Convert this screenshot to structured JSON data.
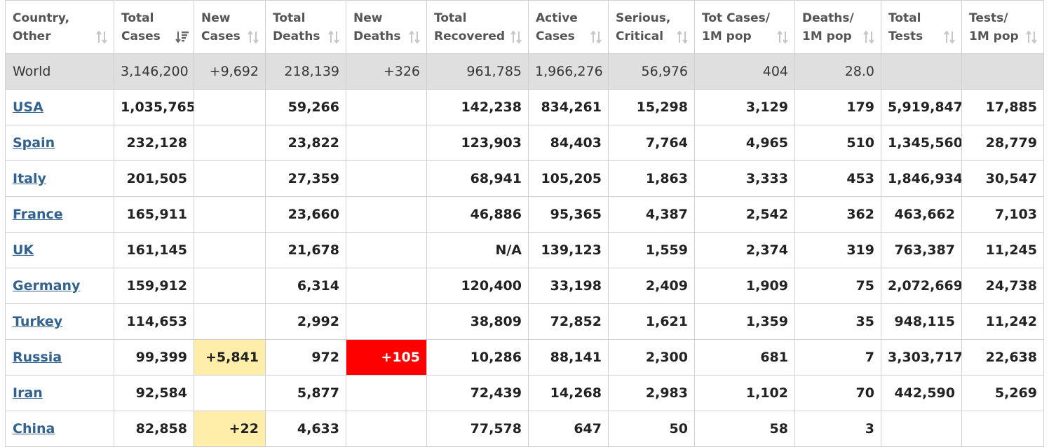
{
  "columns": [
    {
      "line1": "Country,",
      "line2": "Other",
      "sort": "both"
    },
    {
      "line1": "Total",
      "line2": "Cases",
      "sort": "desc"
    },
    {
      "line1": "New",
      "line2": "Cases",
      "sort": "both"
    },
    {
      "line1": "Total",
      "line2": "Deaths",
      "sort": "both"
    },
    {
      "line1": "New",
      "line2": "Deaths",
      "sort": "both"
    },
    {
      "line1": "Total",
      "line2": "Recovered",
      "sort": "both"
    },
    {
      "line1": "Active",
      "line2": "Cases",
      "sort": "both"
    },
    {
      "line1": "Serious,",
      "line2": "Critical",
      "sort": "both"
    },
    {
      "line1": "Tot Cases/",
      "line2": "1M pop",
      "sort": "both"
    },
    {
      "line1": "Deaths/",
      "line2": "1M pop",
      "sort": "both"
    },
    {
      "line1": "Total",
      "line2": "Tests",
      "sort": "both"
    },
    {
      "line1": "Tests/",
      "line2": "1M pop",
      "sort": "both"
    }
  ],
  "world": {
    "country": "World",
    "total_cases": "3,146,200",
    "new_cases": "+9,692",
    "total_deaths": "218,139",
    "new_deaths": "+326",
    "total_recovered": "961,785",
    "active_cases": "1,966,276",
    "serious_critical": "56,976",
    "cases_per_1m": "404",
    "deaths_per_1m": "28.0",
    "total_tests": "",
    "tests_per_1m": ""
  },
  "rows": [
    {
      "country": "USA",
      "total_cases": "1,035,765",
      "new_cases": "",
      "total_deaths": "59,266",
      "new_deaths": "",
      "total_recovered": "142,238",
      "active_cases": "834,261",
      "serious_critical": "15,298",
      "cases_per_1m": "3,129",
      "deaths_per_1m": "179",
      "total_tests": "5,919,847",
      "tests_per_1m": "17,885"
    },
    {
      "country": "Spain",
      "total_cases": "232,128",
      "new_cases": "",
      "total_deaths": "23,822",
      "new_deaths": "",
      "total_recovered": "123,903",
      "active_cases": "84,403",
      "serious_critical": "7,764",
      "cases_per_1m": "4,965",
      "deaths_per_1m": "510",
      "total_tests": "1,345,560",
      "tests_per_1m": "28,779"
    },
    {
      "country": "Italy",
      "total_cases": "201,505",
      "new_cases": "",
      "total_deaths": "27,359",
      "new_deaths": "",
      "total_recovered": "68,941",
      "active_cases": "105,205",
      "serious_critical": "1,863",
      "cases_per_1m": "3,333",
      "deaths_per_1m": "453",
      "total_tests": "1,846,934",
      "tests_per_1m": "30,547"
    },
    {
      "country": "France",
      "total_cases": "165,911",
      "new_cases": "",
      "total_deaths": "23,660",
      "new_deaths": "",
      "total_recovered": "46,886",
      "active_cases": "95,365",
      "serious_critical": "4,387",
      "cases_per_1m": "2,542",
      "deaths_per_1m": "362",
      "total_tests": "463,662",
      "tests_per_1m": "7,103"
    },
    {
      "country": "UK",
      "total_cases": "161,145",
      "new_cases": "",
      "total_deaths": "21,678",
      "new_deaths": "",
      "total_recovered": "N/A",
      "active_cases": "139,123",
      "serious_critical": "1,559",
      "cases_per_1m": "2,374",
      "deaths_per_1m": "319",
      "total_tests": "763,387",
      "tests_per_1m": "11,245"
    },
    {
      "country": "Germany",
      "total_cases": "159,912",
      "new_cases": "",
      "total_deaths": "6,314",
      "new_deaths": "",
      "total_recovered": "120,400",
      "active_cases": "33,198",
      "serious_critical": "2,409",
      "cases_per_1m": "1,909",
      "deaths_per_1m": "75",
      "total_tests": "2,072,669",
      "tests_per_1m": "24,738"
    },
    {
      "country": "Turkey",
      "total_cases": "114,653",
      "new_cases": "",
      "total_deaths": "2,992",
      "new_deaths": "",
      "total_recovered": "38,809",
      "active_cases": "72,852",
      "serious_critical": "1,621",
      "cases_per_1m": "1,359",
      "deaths_per_1m": "35",
      "total_tests": "948,115",
      "tests_per_1m": "11,242"
    },
    {
      "country": "Russia",
      "total_cases": "99,399",
      "new_cases": "+5,841",
      "total_deaths": "972",
      "new_deaths": "+105",
      "total_recovered": "10,286",
      "active_cases": "88,141",
      "serious_critical": "2,300",
      "cases_per_1m": "681",
      "deaths_per_1m": "7",
      "total_tests": "3,303,717",
      "tests_per_1m": "22,638"
    },
    {
      "country": "Iran",
      "total_cases": "92,584",
      "new_cases": "",
      "total_deaths": "5,877",
      "new_deaths": "",
      "total_recovered": "72,439",
      "active_cases": "14,268",
      "serious_critical": "2,983",
      "cases_per_1m": "1,102",
      "deaths_per_1m": "70",
      "total_tests": "442,590",
      "tests_per_1m": "5,269"
    },
    {
      "country": "China",
      "total_cases": "82,858",
      "new_cases": "+22",
      "total_deaths": "4,633",
      "new_deaths": "",
      "total_recovered": "77,578",
      "active_cases": "647",
      "serious_critical": "50",
      "cases_per_1m": "58",
      "deaths_per_1m": "3",
      "total_tests": "",
      "tests_per_1m": ""
    }
  ],
  "colors": {
    "new_cases_highlight": "#ffeeaa",
    "new_deaths_highlight": "#ff0000",
    "link": "#32628d",
    "world_row_bg": "#dfdfdf"
  },
  "icons": {
    "sort_both": "sort-arrows-icon",
    "sort_desc": "sort-descending-icon"
  }
}
